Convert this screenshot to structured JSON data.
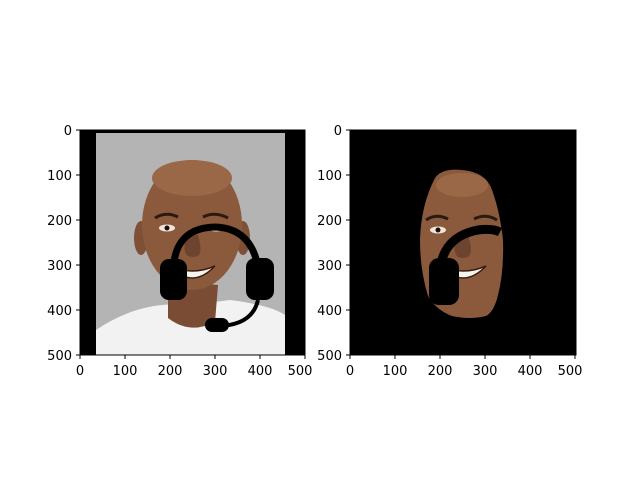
{
  "panels": [
    {
      "name": "original-with-headset",
      "x_ticks": [
        "0",
        "100",
        "200",
        "300",
        "400",
        "500"
      ],
      "y_ticks": [
        "0",
        "100",
        "200",
        "300",
        "400",
        "500"
      ],
      "content": "portrait photo of a smiling bald man in a white shirt on a grey background, overlaid with a black headset shape"
    },
    {
      "name": "masked-face",
      "x_ticks": [
        "0",
        "100",
        "200",
        "300",
        "400",
        "500"
      ],
      "y_ticks": [
        "0",
        "100",
        "200",
        "300",
        "400",
        "500"
      ],
      "content": "face region only on a black background with the headset area masked out"
    }
  ],
  "colors": {
    "background": "#ffffff",
    "photo_bg": "#b4b4b4",
    "skin": "#8b5a3c",
    "skin_shade": "#6e4430",
    "mask": "#000000",
    "shirt": "#f2f2f2"
  }
}
